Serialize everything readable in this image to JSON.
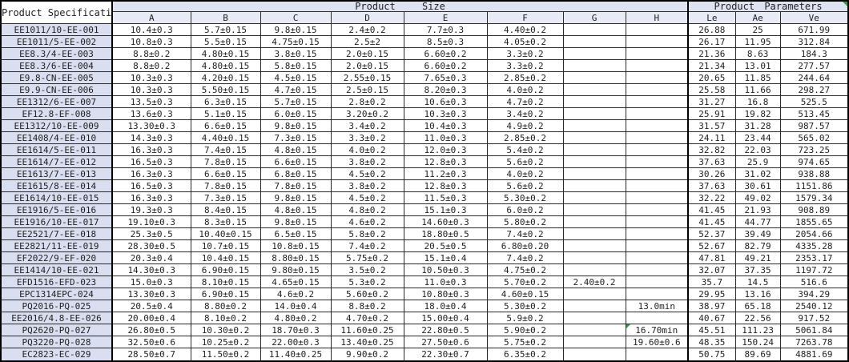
{
  "header": {
    "spec_label": "Product Specifications",
    "size_label": "Product Size",
    "params_label": "Product Parameters",
    "size_columns": [
      "A",
      "B",
      "C",
      "D",
      "E",
      "F",
      "G",
      "H"
    ],
    "param_columns": [
      "Le",
      "Ae",
      "Ve"
    ]
  },
  "colors": {
    "group_header_fill": "#dfe3f1",
    "column_header_fill": "#e8ebf5",
    "spec_column_fill": "#d9dff0",
    "grid_line": "#2a2a2a",
    "comment_marker_green": "#2d9e41"
  },
  "markers": {
    "params_header_top_right_triangle": true,
    "h_cell_top_left_triangle_row": "PQ2620-PQ-027"
  },
  "rows": [
    {
      "cells": [
        "EE1011/10-EE-001",
        "10.4±0.3",
        "5.7±0.15",
        "9.8±0.15",
        "2.4±0.2",
        "7.7±0.3",
        "4.40±0.2",
        "",
        "",
        "26.88",
        "25",
        "671.99"
      ]
    },
    {
      "cells": [
        "EE1011/5-EE-002",
        "10.8±0.3",
        "5.5±0.15",
        "4.75±0.15",
        "2.5±2",
        "8.5±0.3",
        "4.05±0.2",
        "",
        "",
        "26.17",
        "11.95",
        "312.84"
      ]
    },
    {
      "cells": [
        "EE8.3/4-EE-003",
        "8.8±0.2",
        "4.80±0.15",
        "3.8±0.15",
        "2.0±0.15",
        "6.60±0.2",
        "3.3±0.2",
        "",
        "",
        "21.36",
        "8.63",
        "184.3"
      ]
    },
    {
      "cells": [
        "EE8.3/6-EE-004",
        "8.8±0.2",
        "4.80±0.15",
        "5.8±0.15",
        "2.0±0.15",
        "6.60±0.2",
        "3.3±0.2",
        "",
        "",
        "21.34",
        "13.01",
        "277.57"
      ]
    },
    {
      "cells": [
        "E9.8-CN-EE-005",
        "10.3±0.3",
        "4.20±0.15",
        "4.5±0.15",
        "2.55±0.15",
        "7.65±0.3",
        "2.85±0.2",
        "",
        "",
        "20.65",
        "11.85",
        "244.64"
      ]
    },
    {
      "cells": [
        "E9.9-CN-EE-006",
        "10.3±0.3",
        "5.50±0.15",
        "4.7±0.15",
        "2.5±0.15",
        "8.20±0.3",
        "4.0±0.2",
        "",
        "",
        "25.58",
        "11.66",
        "298.27"
      ]
    },
    {
      "cells": [
        "EE1312/6-EE-007",
        "13.5±0.3",
        "6.3±0.15",
        "5.7±0.15",
        "2.8±0.2",
        "10.6±0.3",
        "4.7±0.2",
        "",
        "",
        "31.27",
        "16.8",
        "525.5"
      ]
    },
    {
      "cells": [
        "EF12.8-EF-008",
        "13.6±0.3",
        "5.1±0.15",
        "6.0±0.15",
        "3.20±0.2",
        "10.3±0.3",
        "3.4±0.2",
        "",
        "",
        "25.91",
        "19.82",
        "513.45"
      ]
    },
    {
      "cells": [
        "EE1312/10-EE-009",
        "13.30±0.3",
        "6.6±0.15",
        "9.8±0.15",
        "3.4±0.2",
        "10.4±0.3",
        "4.9±0.2",
        "",
        "",
        "31.57",
        "31.28",
        "987.57"
      ]
    },
    {
      "cells": [
        "EE1408/4-EE-010",
        "14.3±0.3",
        "4.40±0.15",
        "7.3±0.15",
        "3.3±0.2",
        "11.0±0.3",
        "2.85±0.2",
        "",
        "",
        "24.11",
        "23.44",
        "565.02"
      ]
    },
    {
      "cells": [
        "EE1614/5-EE-011",
        "16.3±0.3",
        "7.4±0.15",
        "4.8±0.15",
        "4.0±0.2",
        "12.0±0.3",
        "5.4±0.2",
        "",
        "",
        "32.82",
        "22.03",
        "723.25"
      ]
    },
    {
      "cells": [
        "EE1614/7-EE-012",
        "16.5±0.3",
        "7.8±0.15",
        "6.6±0.15",
        "3.8±0.2",
        "12.8±0.3",
        "5.6±0.2",
        "",
        "",
        "37.63",
        "25.9",
        "974.65"
      ]
    },
    {
      "cells": [
        "EE1613/7-EE-013",
        "16.3±0.3",
        "6.6±0.15",
        "6.8±0.15",
        "4.5±0.2",
        "11.2±0.3",
        "4.0±0.2",
        "",
        "",
        "30.26",
        "31.02",
        "938.88"
      ]
    },
    {
      "cells": [
        "EE1615/8-EE-014",
        "16.5±0.3",
        "7.8±0.15",
        "7.8±0.15",
        "3.8±0.2",
        "12.8±0.3",
        "5.6±0.2",
        "",
        "",
        "37.63",
        "30.61",
        "1151.86"
      ]
    },
    {
      "cells": [
        "EE1614/10-EE-015",
        "16.3±0.3",
        "7.3±0.15",
        "9.8±0.15",
        "4.5±0.2",
        "11.5±0.3",
        "5.30±0.2",
        "",
        "",
        "32.22",
        "49.02",
        "1579.34"
      ]
    },
    {
      "cells": [
        "EE1916/5-EE-016",
        "19.3±0.3",
        "8.4±0.15",
        "4.8±0.15",
        "4.8±0.2",
        "15.1±0.3",
        "6.0±0.2",
        "",
        "",
        "41.45",
        "21.93",
        "908.89"
      ]
    },
    {
      "cells": [
        "EE1916/10-EE-017",
        "19.10±0.3",
        "8.3±0.15",
        "9.8±0.15",
        "4.6±0.2",
        "14.60±0.3",
        "5.80±0.2",
        "",
        "",
        "41.45",
        "44.77",
        "1855.65"
      ]
    },
    {
      "cells": [
        "EE2521/7-EE-018",
        "25.3±0.5",
        "10.40±0.15",
        "6.5±0.15",
        "5.8±0.2",
        "18.80±0.5",
        "7.4±0.2",
        "",
        "",
        "52.37",
        "39.49",
        "2054.66"
      ]
    },
    {
      "cells": [
        "EE2821/11-EE-019",
        "28.30±0.5",
        "10.7±0.15",
        "10.8±0.15",
        "7.4±0.2",
        "20.5±0.5",
        "6.80±0.20",
        "",
        "",
        "52.67",
        "82.79",
        "4335.28"
      ]
    },
    {
      "cells": [
        "EF2022/9-EF-020",
        "20.3±0.4",
        "10.4±0.15",
        "8.80±0.15",
        "5.75±0.2",
        "15.1±0.4",
        "7.4±0.2",
        "",
        "",
        "47.81",
        "49.21",
        "2353.17"
      ]
    },
    {
      "cells": [
        "EE1414/10-EE-021",
        "14.30±0.3",
        "6.90±0.15",
        "9.80±0.15",
        "3.5±0.2",
        "10.50±0.3",
        "4.75±0.2",
        "",
        "",
        "32.07",
        "37.35",
        "1197.72"
      ]
    },
    {
      "cells": [
        "EFD1516-EFD-023",
        "15.0±0.3",
        "8.10±0.15",
        "4.65±0.15",
        "5.3±0.2",
        "11.0±0.3",
        "5.70±0.2",
        "2.40±0.2",
        "",
        "35.7",
        "14.5",
        "516.6"
      ]
    },
    {
      "cells": [
        "EPC1314EPC-024",
        "13.30±0.3",
        "6.90±0.15",
        "4.6±0.2",
        "5.60±0.2",
        "10.80±0.3",
        "4.60±0.15",
        "",
        "",
        "29.95",
        "13.16",
        "394.29"
      ]
    },
    {
      "cells": [
        "PQ2016-PQ-025",
        "20.5±0.4",
        "8.80±0.2",
        "14.0±0.4",
        "8.8±0.2",
        "18.0±0.4",
        "5.30±0.2",
        "",
        "13.0min",
        "38.97",
        "65.18",
        "2540.12"
      ]
    },
    {
      "cells": [
        "EE2016/4.8-EE-026",
        "20.00±0.4",
        "8.10±0.2",
        "4.80±0.2",
        "4.70±0.2",
        "15.00±0.4",
        "5.9±0.2",
        "",
        "",
        "40.67",
        "22.56",
        "917.52"
      ]
    },
    {
      "cells": [
        "PQ2620-PQ-027",
        "26.80±0.5",
        "10.30±0.2",
        "18.70±0.3",
        "11.60±0.25",
        "22.80±0.5",
        "5.90±0.2",
        "",
        "16.70min",
        "45.51",
        "111.23",
        "5061.84"
      ],
      "comment_marker_col": 8
    },
    {
      "cells": [
        "PQ3220-PQ-028",
        "32.50±0.6",
        "10.25±0.2",
        "22.00±0.3",
        "13.40±0.25",
        "27.50±0.6",
        "5.75±0.2",
        "",
        "19.60±0.6",
        "48.35",
        "150.24",
        "7263.78"
      ]
    },
    {
      "cells": [
        "EC2823-EC-029",
        "28.50±0.7",
        "11.50±0.2",
        "11.40±0.25",
        "9.90±0.2",
        "22.30±0.7",
        "6.35±0.2",
        "",
        "",
        "50.75",
        "89.69",
        "4881.69"
      ]
    }
  ]
}
